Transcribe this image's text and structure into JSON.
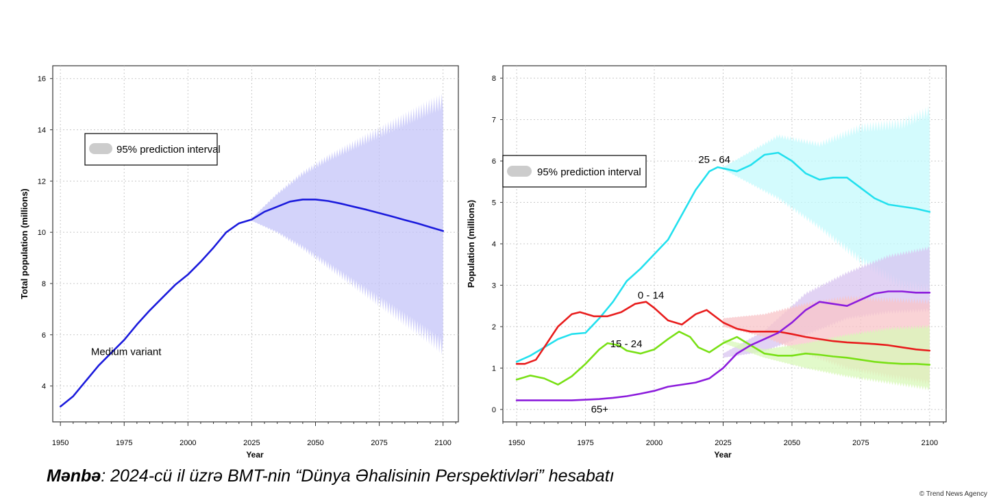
{
  "caption": {
    "bold": "Mənbə",
    "text": ": 2024-cü il üzrə BMT-nin “Dünya Əhalisinin Perspektivləri” hesabatı"
  },
  "credit": "© Trend News Agency",
  "chart_data": [
    {
      "type": "line",
      "title": "",
      "xlabel": "Year",
      "ylabel": "Total population (millions)",
      "xlim": [
        1947,
        2106
      ],
      "ylim": [
        2.6,
        16.5
      ],
      "xticks": [
        1950,
        1975,
        2000,
        2025,
        2050,
        2075,
        2100
      ],
      "yticks": [
        4,
        6,
        8,
        10,
        12,
        14,
        16
      ],
      "grid": true,
      "legend": {
        "label": "95% prediction interval",
        "position": "top-left"
      },
      "series": [
        {
          "name": "Medium variant",
          "color": "#1a1adc",
          "x": [
            1950,
            1955,
            1960,
            1965,
            1970,
            1975,
            1980,
            1985,
            1990,
            1995,
            2000,
            2005,
            2010,
            2015,
            2020,
            2025,
            2030,
            2035,
            2040,
            2045,
            2050,
            2055,
            2060,
            2065,
            2070,
            2075,
            2080,
            2085,
            2090,
            2095,
            2100
          ],
          "values": [
            3.2,
            3.6,
            4.2,
            4.8,
            5.3,
            5.8,
            6.4,
            6.95,
            7.45,
            7.95,
            8.35,
            8.85,
            9.4,
            10.0,
            10.35,
            10.5,
            10.8,
            11.0,
            11.2,
            11.28,
            11.28,
            11.22,
            11.12,
            11.0,
            10.88,
            10.75,
            10.62,
            10.48,
            10.35,
            10.2,
            10.05
          ],
          "label_x": 1962,
          "label_y": 5.2
        }
      ],
      "bands": [
        {
          "name": "95% prediction interval",
          "color": "#c4c4f8",
          "x": [
            2025,
            2035,
            2045,
            2055,
            2065,
            2075,
            2085,
            2095,
            2100
          ],
          "lower": [
            10.45,
            10.0,
            9.4,
            8.7,
            8.0,
            7.3,
            6.6,
            5.9,
            5.5
          ],
          "upper": [
            10.55,
            11.5,
            12.3,
            12.9,
            13.4,
            13.9,
            14.4,
            14.9,
            15.1
          ]
        }
      ]
    },
    {
      "type": "line",
      "title": "",
      "xlabel": "Year",
      "ylabel": "Population (millions)",
      "xlim": [
        1945,
        2106
      ],
      "ylim": [
        -0.3,
        8.3
      ],
      "xticks": [
        1950,
        1975,
        2000,
        2025,
        2050,
        2075,
        2100
      ],
      "yticks": [
        0,
        1,
        2,
        3,
        4,
        5,
        6,
        7,
        8
      ],
      "grid": true,
      "legend": {
        "label": "95% prediction interval",
        "position": "top-left"
      },
      "bands": [
        {
          "name": "25 - 64",
          "color": "#c4fafc",
          "x": [
            2025,
            2045,
            2060,
            2075,
            2090,
            2100
          ],
          "lower": [
            5.8,
            5.1,
            4.4,
            3.6,
            3.0,
            2.9
          ],
          "upper": [
            5.85,
            6.6,
            6.4,
            6.8,
            6.9,
            7.2
          ]
        },
        {
          "name": "65+",
          "color": "#d8c4f0",
          "x": [
            2025,
            2040,
            2055,
            2070,
            2085,
            2100
          ],
          "lower": [
            1.25,
            1.4,
            1.8,
            2.2,
            2.35,
            2.4
          ],
          "upper": [
            1.35,
            1.9,
            2.8,
            3.3,
            3.7,
            3.9
          ]
        },
        {
          "name": "0 - 14",
          "color": "#f8c4c8",
          "x": [
            2025,
            2040,
            2055,
            2070,
            2085,
            2100
          ],
          "lower": [
            2.0,
            1.75,
            1.35,
            1.0,
            0.8,
            0.65
          ],
          "upper": [
            2.2,
            2.3,
            2.55,
            2.7,
            2.65,
            2.6
          ]
        },
        {
          "name": "15 - 24",
          "color": "#d8f8b8",
          "x": [
            2025,
            2040,
            2055,
            2070,
            2085,
            2100
          ],
          "lower": [
            1.6,
            1.25,
            1.0,
            0.8,
            0.65,
            0.5
          ],
          "upper": [
            1.7,
            1.45,
            1.6,
            1.8,
            1.95,
            2.0
          ]
        }
      ],
      "series": [
        {
          "name": "25 - 64",
          "color": "#22e0ee",
          "label_x": 2016,
          "label_y": 5.95,
          "x": [
            1950,
            1955,
            1960,
            1965,
            1970,
            1975,
            1980,
            1985,
            1990,
            1995,
            2000,
            2005,
            2010,
            2015,
            2020,
            2023,
            2030,
            2035,
            2040,
            2045,
            2050,
            2055,
            2060,
            2065,
            2070,
            2075,
            2080,
            2085,
            2090,
            2095,
            2100
          ],
          "values": [
            1.15,
            1.3,
            1.5,
            1.7,
            1.82,
            1.85,
            2.2,
            2.6,
            3.1,
            3.4,
            3.75,
            4.1,
            4.7,
            5.3,
            5.75,
            5.85,
            5.75,
            5.9,
            6.15,
            6.2,
            6.0,
            5.7,
            5.55,
            5.6,
            5.6,
            5.35,
            5.1,
            4.95,
            4.9,
            4.85,
            4.77
          ]
        },
        {
          "name": "0 - 14",
          "color": "#e81c1c",
          "label_x": 1994,
          "label_y": 2.68,
          "x": [
            1950,
            1953,
            1957,
            1960,
            1965,
            1970,
            1973,
            1978,
            1983,
            1988,
            1993,
            1997,
            2000,
            2005,
            2010,
            2015,
            2019,
            2025,
            2030,
            2035,
            2040,
            2045,
            2050,
            2055,
            2060,
            2065,
            2070,
            2075,
            2080,
            2085,
            2090,
            2095,
            2100
          ],
          "values": [
            1.1,
            1.1,
            1.2,
            1.5,
            2.0,
            2.3,
            2.35,
            2.25,
            2.25,
            2.35,
            2.55,
            2.6,
            2.45,
            2.15,
            2.05,
            2.3,
            2.4,
            2.1,
            1.95,
            1.88,
            1.88,
            1.88,
            1.82,
            1.75,
            1.7,
            1.65,
            1.62,
            1.6,
            1.58,
            1.55,
            1.5,
            1.45,
            1.42
          ]
        },
        {
          "name": "15 - 24",
          "color": "#78e014",
          "label_x": 1984,
          "label_y": 1.5,
          "x": [
            1950,
            1955,
            1960,
            1965,
            1970,
            1975,
            1980,
            1983,
            1987,
            1990,
            1995,
            2000,
            2005,
            2009,
            2013,
            2016,
            2020,
            2025,
            2030,
            2035,
            2040,
            2045,
            2050,
            2055,
            2060,
            2065,
            2070,
            2075,
            2080,
            2085,
            2090,
            2095,
            2100
          ],
          "values": [
            0.72,
            0.82,
            0.75,
            0.6,
            0.8,
            1.1,
            1.45,
            1.6,
            1.55,
            1.42,
            1.35,
            1.45,
            1.7,
            1.88,
            1.75,
            1.5,
            1.38,
            1.6,
            1.75,
            1.55,
            1.35,
            1.3,
            1.3,
            1.35,
            1.32,
            1.28,
            1.25,
            1.2,
            1.15,
            1.12,
            1.1,
            1.1,
            1.08
          ]
        },
        {
          "name": "65+",
          "color": "#8c1cdc",
          "label_x": 1977,
          "label_y": -0.08,
          "x": [
            1950,
            1960,
            1970,
            1980,
            1985,
            1990,
            1995,
            2000,
            2005,
            2010,
            2015,
            2020,
            2025,
            2030,
            2035,
            2040,
            2045,
            2050,
            2055,
            2060,
            2065,
            2070,
            2075,
            2080,
            2085,
            2090,
            2095,
            2100
          ],
          "values": [
            0.22,
            0.22,
            0.22,
            0.25,
            0.28,
            0.32,
            0.38,
            0.45,
            0.55,
            0.6,
            0.65,
            0.75,
            1.0,
            1.35,
            1.55,
            1.7,
            1.85,
            2.1,
            2.4,
            2.6,
            2.55,
            2.5,
            2.65,
            2.8,
            2.85,
            2.85,
            2.82,
            2.82
          ]
        }
      ]
    }
  ]
}
